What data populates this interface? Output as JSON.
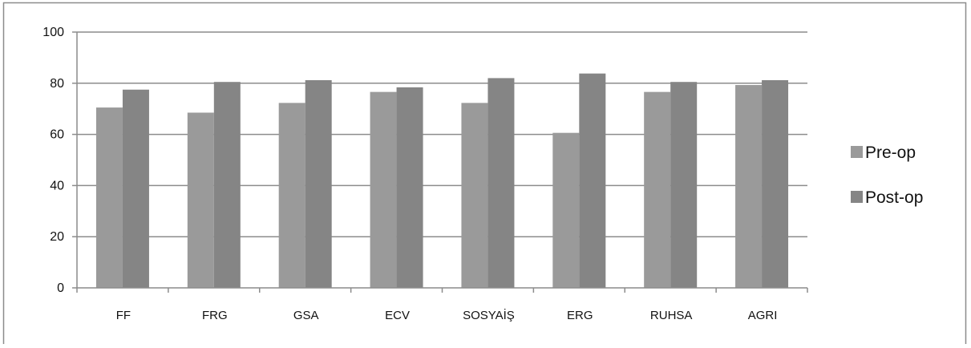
{
  "chart_data": {
    "type": "bar",
    "categories": [
      "FF",
      "FRG",
      "GSA",
      "ECV",
      "SOSYAİŞ",
      "ERG",
      "RUHSA",
      "AGRI"
    ],
    "series": [
      {
        "name": "Pre-op",
        "values": [
          70.5,
          68.5,
          72.3,
          76.6,
          72.3,
          60.6,
          76.6,
          79.3
        ]
      },
      {
        "name": "Post-op",
        "values": [
          77.5,
          80.5,
          81.2,
          78.4,
          82.0,
          83.8,
          80.5,
          81.2
        ]
      }
    ],
    "ylim": [
      0,
      100
    ],
    "yticks": [
      0,
      20,
      40,
      60,
      80,
      100
    ],
    "grid": true,
    "legend_position": "right",
    "colors": {
      "Pre-op": "#9a9a9a",
      "Post-op": "#858585",
      "grid": "#8c8c8c",
      "axis": "#8c8c8c",
      "frame": "#8c8c8c"
    }
  }
}
